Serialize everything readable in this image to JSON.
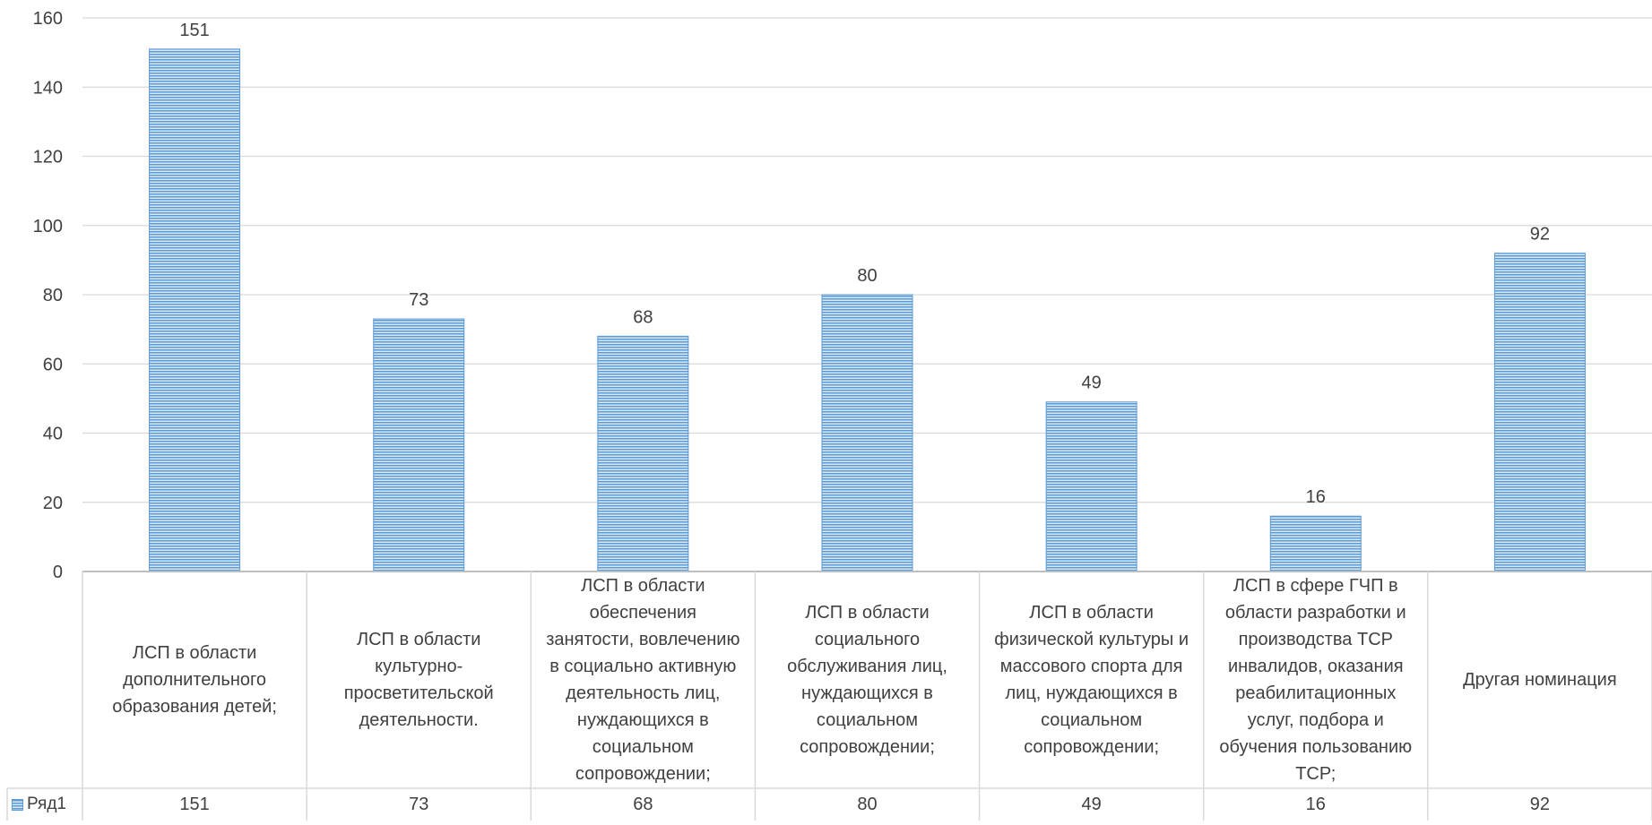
{
  "chart_data": {
    "type": "bar",
    "categories": [
      "ЛСП в области дополнительного образования детей;",
      "ЛСП в области культурно-просветительской деятельности.",
      "ЛСП в области обеспечения занятости, вовлечению в социально активную деятельность лиц, нуждающихся в социальном сопровождении;",
      "ЛСП в области социального обслуживания лиц, нуждающихся в социальном сопровождении;",
      "ЛСП в области физической культуры и массового спорта для лиц, нуждающихся в социальном сопровождении;",
      "ЛСП в сфере ГЧП в области разработки и производства ТСР инвалидов, оказания реабилитационных услуг, подбора и обучения пользованию ТСР;",
      "Другая номинация"
    ],
    "category_lines": [
      [
        "ЛСП в области",
        "дополнительного",
        "образования детей;"
      ],
      [
        "ЛСП в области",
        "культурно-",
        "просветительской",
        "деятельности."
      ],
      [
        "ЛСП в области",
        "обеспечения",
        "занятости, вовлечению",
        "в социально активную",
        "деятельность лиц,",
        "нуждающихся в",
        "социальном",
        "сопровождении;"
      ],
      [
        "ЛСП в области",
        "социального",
        "обслуживания лиц,",
        "нуждающихся в",
        "социальном",
        "сопровождении;"
      ],
      [
        "ЛСП в области",
        "физической культуры и",
        "массового спорта для",
        "лиц, нуждающихся в",
        "социальном",
        "сопровождении;"
      ],
      [
        "ЛСП в сфере ГЧП в",
        "области разработки и",
        "производства ТСР",
        "инвалидов, оказания",
        "реабилитационных",
        "услуг, подбора и",
        "обучения пользованию",
        "ТСР;"
      ],
      [
        "Другая номинация"
      ]
    ],
    "series": [
      {
        "name": "Ряд1",
        "values": [
          151,
          73,
          68,
          80,
          49,
          16,
          92
        ]
      }
    ],
    "y_ticks": [
      "0",
      "20",
      "40",
      "60",
      "80",
      "100",
      "120",
      "140",
      "160"
    ],
    "ylim": [
      0,
      160
    ],
    "grid": true,
    "data_labels": true,
    "legend": "data-table",
    "colors": {
      "bar": "#5b9bd5",
      "bar_stripe_light": "#dbe8f5",
      "grid": "#d9d9d9",
      "text": "#404040"
    }
  }
}
